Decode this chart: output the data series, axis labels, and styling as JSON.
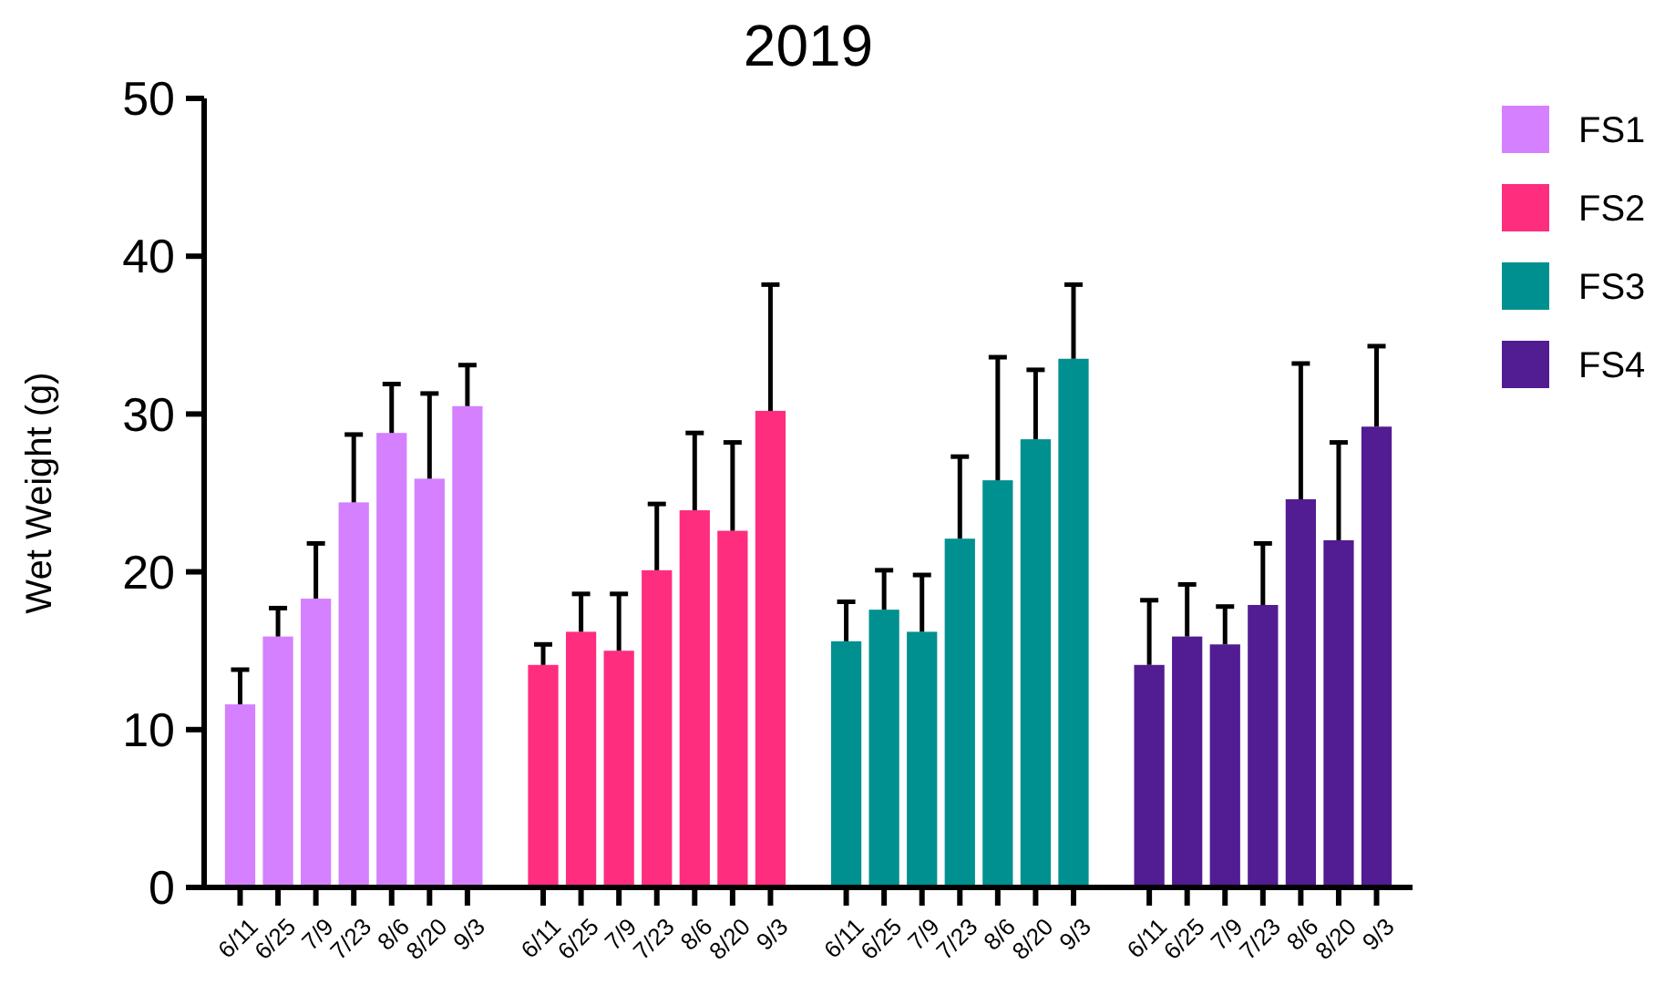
{
  "chart_data": {
    "type": "bar",
    "title": "2019",
    "ylabel": "Wet Weight (g)",
    "categories": [
      "6/11",
      "6/25",
      "7/9",
      "7/23",
      "8/6",
      "8/20",
      "9/3",
      null,
      "6/11",
      "6/25",
      "7/9",
      "7/23",
      "8/6",
      "8/20",
      "9/3",
      null,
      "6/11",
      "6/25",
      "7/9",
      "7/23",
      "8/6",
      "8/20",
      "9/3",
      null,
      "6/11",
      "6/25",
      "7/9",
      "7/23",
      "8/6",
      "8/20",
      "9/3"
    ],
    "series": [
      {
        "name": "FS1",
        "color": "#d580ff",
        "values": [
          11.6,
          15.9,
          18.3,
          24.4,
          28.8,
          25.9,
          30.5,
          null,
          null,
          null,
          null,
          null,
          null,
          null,
          null,
          null,
          null,
          null,
          null,
          null,
          null,
          null,
          null,
          null,
          null,
          null,
          null,
          null,
          null,
          null,
          null
        ],
        "errors": [
          [
            11.6,
            13.8
          ],
          [
            15.9,
            17.7
          ],
          [
            18.3,
            21.8
          ],
          [
            24.4,
            28.7
          ],
          [
            28.8,
            31.9
          ],
          [
            25.9,
            31.3
          ],
          [
            30.5,
            33.1
          ],
          null,
          null,
          null,
          null,
          null,
          null,
          null,
          null,
          null,
          null,
          null,
          null,
          null,
          null,
          null,
          null,
          null,
          null,
          null,
          null,
          null,
          null,
          null,
          null
        ]
      },
      {
        "name": "FS2",
        "color": "#ff2d7e",
        "values": [
          null,
          null,
          null,
          null,
          null,
          null,
          null,
          null,
          14.1,
          16.2,
          15.0,
          20.1,
          23.9,
          22.6,
          30.2,
          null,
          null,
          null,
          null,
          null,
          null,
          null,
          null,
          null,
          null,
          null,
          null,
          null,
          null,
          null,
          null
        ],
        "errors": [
          null,
          null,
          null,
          null,
          null,
          null,
          null,
          null,
          [
            14.1,
            15.4
          ],
          [
            16.2,
            18.6
          ],
          [
            15.0,
            18.6
          ],
          [
            20.1,
            24.3
          ],
          [
            23.9,
            28.8
          ],
          [
            22.6,
            28.2
          ],
          [
            30.2,
            38.2
          ],
          null,
          null,
          null,
          null,
          null,
          null,
          null,
          null,
          null,
          null,
          null,
          null,
          null,
          null,
          null,
          null
        ]
      },
      {
        "name": "FS3",
        "color": "#009090",
        "values": [
          null,
          null,
          null,
          null,
          null,
          null,
          null,
          null,
          null,
          null,
          null,
          null,
          null,
          null,
          null,
          null,
          15.6,
          17.6,
          16.2,
          22.1,
          25.8,
          28.4,
          33.5,
          null,
          null,
          null,
          null,
          null,
          null,
          null,
          null
        ],
        "errors": [
          null,
          null,
          null,
          null,
          null,
          null,
          null,
          null,
          null,
          null,
          null,
          null,
          null,
          null,
          null,
          null,
          [
            15.6,
            18.1
          ],
          [
            17.6,
            20.1
          ],
          [
            16.2,
            19.8
          ],
          [
            22.1,
            27.3
          ],
          [
            25.8,
            33.6
          ],
          [
            28.4,
            32.8
          ],
          [
            33.5,
            38.2
          ],
          null,
          null,
          null,
          null,
          null,
          null,
          null,
          null
        ]
      },
      {
        "name": "FS4",
        "color": "#521c92",
        "values": [
          null,
          null,
          null,
          null,
          null,
          null,
          null,
          null,
          null,
          null,
          null,
          null,
          null,
          null,
          null,
          null,
          null,
          null,
          null,
          null,
          null,
          null,
          null,
          null,
          14.1,
          15.9,
          15.4,
          17.9,
          24.6,
          22.0,
          29.2
        ],
        "errors": [
          null,
          null,
          null,
          null,
          null,
          null,
          null,
          null,
          null,
          null,
          null,
          null,
          null,
          null,
          null,
          null,
          null,
          null,
          null,
          null,
          null,
          null,
          null,
          null,
          [
            14.1,
            18.2
          ],
          [
            15.9,
            19.2
          ],
          [
            15.4,
            17.8
          ],
          [
            17.9,
            21.8
          ],
          [
            24.6,
            33.2
          ],
          [
            22.0,
            28.2
          ],
          [
            29.2,
            34.3
          ]
        ]
      }
    ],
    "ylim": [
      0,
      50
    ],
    "yticks": [
      0,
      10,
      20,
      30,
      40,
      50
    ],
    "grid": false,
    "legend": "right"
  }
}
